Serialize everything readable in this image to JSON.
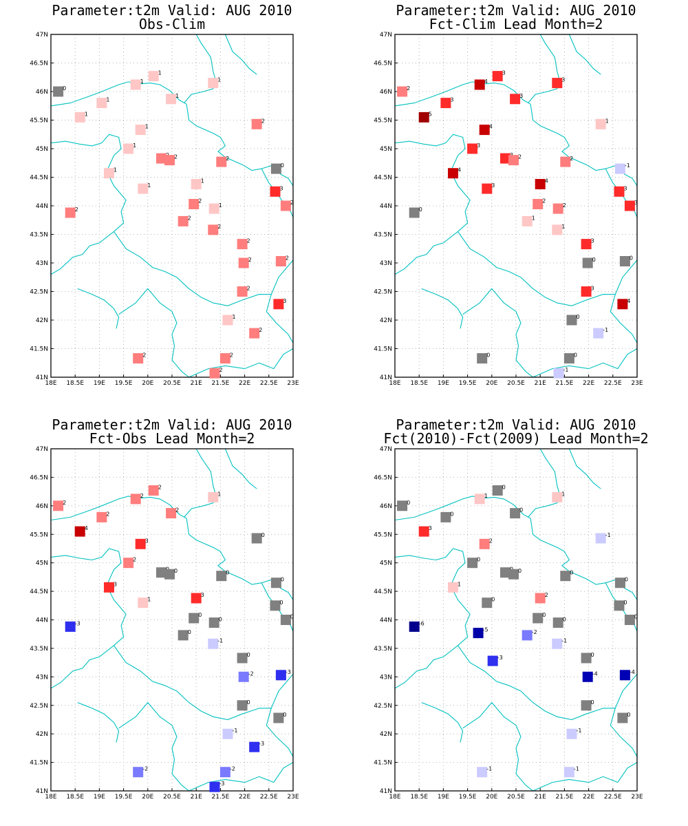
{
  "colors": {
    "background": "#ffffff",
    "border_lines": "#00c0c0",
    "grid": "#b0b0b0",
    "value_colors": {
      "-6": "#00008c",
      "-5": "#0000a8",
      "-4": "#0000b4",
      "-3": "#2f2ff0",
      "-2": "#7a7aff",
      "-1": "#cbcbff",
      "0": "#808080",
      "1": "#ffc6c6",
      "2": "#ff7d7d",
      "3": "#ff2b2b",
      "4": "#c80000",
      "5": "#a00000"
    }
  },
  "chart_data": [
    {
      "type": "scatter",
      "title_line1": "Parameter:t2m Valid: AUG 2010",
      "title_line2": "Obs-Clim",
      "xlim": [
        18,
        23
      ],
      "ylim": [
        41,
        47
      ],
      "xticks": [
        "18E",
        "18.5E",
        "19E",
        "19.5E",
        "20E",
        "20.5E",
        "21E",
        "21.5E",
        "22E",
        "22.5E",
        "23E"
      ],
      "yticks": [
        "41N",
        "41.5N",
        "42N",
        "42.5N",
        "43N",
        "43.5N",
        "44N",
        "44.5N",
        "45N",
        "45.5N",
        "46N",
        "46.5N",
        "47N"
      ],
      "grid": true,
      "points": [
        {
          "lon": 18.15,
          "lat": 46.0,
          "value": 0
        },
        {
          "lon": 18.6,
          "lat": 45.55,
          "value": 1
        },
        {
          "lon": 19.05,
          "lat": 45.8,
          "value": 1
        },
        {
          "lon": 19.75,
          "lat": 46.12,
          "value": 1
        },
        {
          "lon": 20.12,
          "lat": 46.27,
          "value": 1
        },
        {
          "lon": 20.48,
          "lat": 45.87,
          "value": 1
        },
        {
          "lon": 21.35,
          "lat": 46.15,
          "value": 1
        },
        {
          "lon": 22.25,
          "lat": 45.43,
          "value": 2
        },
        {
          "lon": 19.85,
          "lat": 45.33,
          "value": 1
        },
        {
          "lon": 19.6,
          "lat": 45.0,
          "value": 1
        },
        {
          "lon": 20.28,
          "lat": 44.83,
          "value": 2
        },
        {
          "lon": 20.45,
          "lat": 44.8,
          "value": 2
        },
        {
          "lon": 21.52,
          "lat": 44.77,
          "value": 2
        },
        {
          "lon": 22.65,
          "lat": 44.65,
          "value": 0
        },
        {
          "lon": 19.2,
          "lat": 44.57,
          "value": 1
        },
        {
          "lon": 19.9,
          "lat": 44.3,
          "value": 1
        },
        {
          "lon": 21.0,
          "lat": 44.38,
          "value": 1
        },
        {
          "lon": 22.63,
          "lat": 44.25,
          "value": 3
        },
        {
          "lon": 22.85,
          "lat": 44.0,
          "value": 2
        },
        {
          "lon": 20.95,
          "lat": 44.03,
          "value": 2
        },
        {
          "lon": 21.37,
          "lat": 43.95,
          "value": 1
        },
        {
          "lon": 18.4,
          "lat": 43.88,
          "value": 2
        },
        {
          "lon": 20.73,
          "lat": 43.73,
          "value": 2
        },
        {
          "lon": 21.35,
          "lat": 43.58,
          "value": 2
        },
        {
          "lon": 21.95,
          "lat": 43.33,
          "value": 2
        },
        {
          "lon": 21.98,
          "lat": 43.0,
          "value": 2
        },
        {
          "lon": 22.75,
          "lat": 43.03,
          "value": 2
        },
        {
          "lon": 21.95,
          "lat": 42.5,
          "value": 2
        },
        {
          "lon": 22.7,
          "lat": 42.28,
          "value": 3
        },
        {
          "lon": 21.65,
          "lat": 42.0,
          "value": 1
        },
        {
          "lon": 22.2,
          "lat": 41.77,
          "value": 2
        },
        {
          "lon": 19.8,
          "lat": 41.33,
          "value": 2
        },
        {
          "lon": 21.6,
          "lat": 41.33,
          "value": 2
        },
        {
          "lon": 21.38,
          "lat": 41.07,
          "value": 2
        }
      ]
    },
    {
      "type": "scatter",
      "title_line1": "Parameter:t2m Valid: AUG 2010",
      "title_line2": "Fct-Clim Lead Month=2",
      "xlim": [
        18,
        23
      ],
      "ylim": [
        41,
        47
      ],
      "xticks": [
        "18E",
        "18.5E",
        "19E",
        "19.5E",
        "20E",
        "20.5E",
        "21E",
        "21.5E",
        "22E",
        "22.5E",
        "23E"
      ],
      "yticks": [
        "41N",
        "41.5N",
        "42N",
        "42.5N",
        "43N",
        "43.5N",
        "44N",
        "44.5N",
        "45N",
        "45.5N",
        "46N",
        "46.5N",
        "47N"
      ],
      "grid": true,
      "points": [
        {
          "lon": 18.15,
          "lat": 46.0,
          "value": 2
        },
        {
          "lon": 18.6,
          "lat": 45.55,
          "value": 5
        },
        {
          "lon": 19.05,
          "lat": 45.8,
          "value": 3
        },
        {
          "lon": 19.75,
          "lat": 46.12,
          "value": 4
        },
        {
          "lon": 20.12,
          "lat": 46.27,
          "value": 3
        },
        {
          "lon": 20.48,
          "lat": 45.87,
          "value": 3
        },
        {
          "lon": 21.35,
          "lat": 46.15,
          "value": 3
        },
        {
          "lon": 22.25,
          "lat": 45.43,
          "value": 1
        },
        {
          "lon": 19.85,
          "lat": 45.33,
          "value": 4
        },
        {
          "lon": 19.6,
          "lat": 45.0,
          "value": 3
        },
        {
          "lon": 20.28,
          "lat": 44.83,
          "value": 3
        },
        {
          "lon": 20.45,
          "lat": 44.8,
          "value": 2
        },
        {
          "lon": 21.52,
          "lat": 44.77,
          "value": 2
        },
        {
          "lon": 22.65,
          "lat": 44.65,
          "value": -1
        },
        {
          "lon": 19.2,
          "lat": 44.57,
          "value": 4
        },
        {
          "lon": 19.9,
          "lat": 44.3,
          "value": 3
        },
        {
          "lon": 21.0,
          "lat": 44.38,
          "value": 4
        },
        {
          "lon": 22.63,
          "lat": 44.25,
          "value": 3
        },
        {
          "lon": 22.85,
          "lat": 44.0,
          "value": 3
        },
        {
          "lon": 20.95,
          "lat": 44.03,
          "value": 2
        },
        {
          "lon": 21.37,
          "lat": 43.95,
          "value": 2
        },
        {
          "lon": 18.4,
          "lat": 43.88,
          "value": 0
        },
        {
          "lon": 20.73,
          "lat": 43.73,
          "value": 1
        },
        {
          "lon": 21.35,
          "lat": 43.58,
          "value": 1
        },
        {
          "lon": 21.95,
          "lat": 43.33,
          "value": 3
        },
        {
          "lon": 21.98,
          "lat": 43.0,
          "value": 0
        },
        {
          "lon": 22.75,
          "lat": 43.03,
          "value": 0
        },
        {
          "lon": 21.95,
          "lat": 42.5,
          "value": 3
        },
        {
          "lon": 22.7,
          "lat": 42.28,
          "value": 4
        },
        {
          "lon": 21.65,
          "lat": 42.0,
          "value": 0
        },
        {
          "lon": 22.2,
          "lat": 41.77,
          "value": -1
        },
        {
          "lon": 19.8,
          "lat": 41.33,
          "value": 0
        },
        {
          "lon": 21.6,
          "lat": 41.33,
          "value": 0
        },
        {
          "lon": 21.38,
          "lat": 41.07,
          "value": -1
        }
      ]
    },
    {
      "type": "scatter",
      "title_line1": "Parameter:t2m Valid: AUG 2010",
      "title_line2": "Fct-Obs Lead Month=2",
      "xlim": [
        18,
        23
      ],
      "ylim": [
        41,
        47
      ],
      "xticks": [
        "18E",
        "18.5E",
        "19E",
        "19.5E",
        "20E",
        "20.5E",
        "21E",
        "21.5E",
        "22E",
        "22.5E",
        "23E"
      ],
      "yticks": [
        "41N",
        "41.5N",
        "42N",
        "42.5N",
        "43N",
        "43.5N",
        "44N",
        "44.5N",
        "45N",
        "45.5N",
        "46N",
        "46.5N",
        "47N"
      ],
      "grid": true,
      "points": [
        {
          "lon": 18.15,
          "lat": 46.0,
          "value": 2
        },
        {
          "lon": 18.6,
          "lat": 45.55,
          "value": 4
        },
        {
          "lon": 19.05,
          "lat": 45.8,
          "value": 2
        },
        {
          "lon": 19.75,
          "lat": 46.12,
          "value": 2
        },
        {
          "lon": 20.12,
          "lat": 46.27,
          "value": 2
        },
        {
          "lon": 20.48,
          "lat": 45.87,
          "value": 2
        },
        {
          "lon": 21.35,
          "lat": 46.15,
          "value": 1
        },
        {
          "lon": 22.25,
          "lat": 45.43,
          "value": 0
        },
        {
          "lon": 19.85,
          "lat": 45.33,
          "value": 3
        },
        {
          "lon": 19.6,
          "lat": 45.0,
          "value": 2
        },
        {
          "lon": 20.28,
          "lat": 44.83,
          "value": 0
        },
        {
          "lon": 20.45,
          "lat": 44.8,
          "value": 0
        },
        {
          "lon": 21.52,
          "lat": 44.77,
          "value": 0
        },
        {
          "lon": 22.65,
          "lat": 44.65,
          "value": 0
        },
        {
          "lon": 19.2,
          "lat": 44.57,
          "value": 3
        },
        {
          "lon": 19.9,
          "lat": 44.3,
          "value": 1
        },
        {
          "lon": 21.0,
          "lat": 44.38,
          "value": 3
        },
        {
          "lon": 22.63,
          "lat": 44.25,
          "value": 0
        },
        {
          "lon": 22.85,
          "lat": 44.0,
          "value": 0
        },
        {
          "lon": 20.95,
          "lat": 44.03,
          "value": 0
        },
        {
          "lon": 21.37,
          "lat": 43.95,
          "value": 0
        },
        {
          "lon": 18.4,
          "lat": 43.88,
          "value": -3
        },
        {
          "lon": 20.73,
          "lat": 43.73,
          "value": 0
        },
        {
          "lon": 21.35,
          "lat": 43.58,
          "value": -1
        },
        {
          "lon": 21.95,
          "lat": 43.33,
          "value": 0
        },
        {
          "lon": 21.98,
          "lat": 43.0,
          "value": -2
        },
        {
          "lon": 22.75,
          "lat": 43.03,
          "value": -3
        },
        {
          "lon": 21.95,
          "lat": 42.5,
          "value": 0
        },
        {
          "lon": 22.7,
          "lat": 42.28,
          "value": 0
        },
        {
          "lon": 21.65,
          "lat": 42.0,
          "value": -1
        },
        {
          "lon": 22.2,
          "lat": 41.77,
          "value": -3
        },
        {
          "lon": 19.8,
          "lat": 41.33,
          "value": -2
        },
        {
          "lon": 21.6,
          "lat": 41.33,
          "value": -2
        },
        {
          "lon": 21.38,
          "lat": 41.07,
          "value": -3
        }
      ]
    },
    {
      "type": "scatter",
      "title_line1": "Parameter:t2m Valid: AUG 2010",
      "title_line2": "Fct(2010)-Fct(2009) Lead Month=2",
      "xlim": [
        18,
        23
      ],
      "ylim": [
        41,
        47
      ],
      "xticks": [
        "18E",
        "18.5E",
        "19E",
        "19.5E",
        "20E",
        "20.5E",
        "21E",
        "21.5E",
        "22E",
        "22.5E",
        "23E"
      ],
      "yticks": [
        "41N",
        "41.5N",
        "42N",
        "42.5N",
        "43N",
        "43.5N",
        "44N",
        "44.5N",
        "45N",
        "45.5N",
        "46N",
        "46.5N",
        "47N"
      ],
      "grid": true,
      "points": [
        {
          "lon": 18.15,
          "lat": 46.0,
          "value": 0
        },
        {
          "lon": 18.6,
          "lat": 45.55,
          "value": 3
        },
        {
          "lon": 19.05,
          "lat": 45.8,
          "value": 0
        },
        {
          "lon": 19.75,
          "lat": 46.12,
          "value": 1
        },
        {
          "lon": 20.12,
          "lat": 46.27,
          "value": 0
        },
        {
          "lon": 20.48,
          "lat": 45.87,
          "value": 0
        },
        {
          "lon": 21.35,
          "lat": 46.15,
          "value": 1
        },
        {
          "lon": 22.25,
          "lat": 45.43,
          "value": -1
        },
        {
          "lon": 19.85,
          "lat": 45.33,
          "value": 2
        },
        {
          "lon": 19.6,
          "lat": 45.0,
          "value": 0
        },
        {
          "lon": 20.28,
          "lat": 44.83,
          "value": 0
        },
        {
          "lon": 20.45,
          "lat": 44.8,
          "value": 0
        },
        {
          "lon": 21.52,
          "lat": 44.77,
          "value": 0
        },
        {
          "lon": 22.65,
          "lat": 44.65,
          "value": 0
        },
        {
          "lon": 19.2,
          "lat": 44.57,
          "value": 1
        },
        {
          "lon": 19.9,
          "lat": 44.3,
          "value": 0
        },
        {
          "lon": 21.0,
          "lat": 44.38,
          "value": 2
        },
        {
          "lon": 22.63,
          "lat": 44.25,
          "value": 0
        },
        {
          "lon": 22.85,
          "lat": 44.0,
          "value": 0
        },
        {
          "lon": 20.95,
          "lat": 44.03,
          "value": 0
        },
        {
          "lon": 21.37,
          "lat": 43.95,
          "value": 0
        },
        {
          "lon": 18.4,
          "lat": 43.88,
          "value": -6
        },
        {
          "lon": 19.72,
          "lat": 43.77,
          "value": -5
        },
        {
          "lon": 20.73,
          "lat": 43.73,
          "value": -2
        },
        {
          "lon": 21.35,
          "lat": 43.58,
          "value": -1
        },
        {
          "lon": 20.02,
          "lat": 43.28,
          "value": -3
        },
        {
          "lon": 21.95,
          "lat": 43.33,
          "value": 0
        },
        {
          "lon": 21.98,
          "lat": 43.0,
          "value": -4
        },
        {
          "lon": 22.75,
          "lat": 43.03,
          "value": -4
        },
        {
          "lon": 21.95,
          "lat": 42.5,
          "value": 0
        },
        {
          "lon": 22.7,
          "lat": 42.28,
          "value": 0
        },
        {
          "lon": 21.65,
          "lat": 42.0,
          "value": -1
        },
        {
          "lon": 19.8,
          "lat": 41.33,
          "value": -1
        },
        {
          "lon": 21.6,
          "lat": 41.33,
          "value": -1
        }
      ]
    }
  ]
}
